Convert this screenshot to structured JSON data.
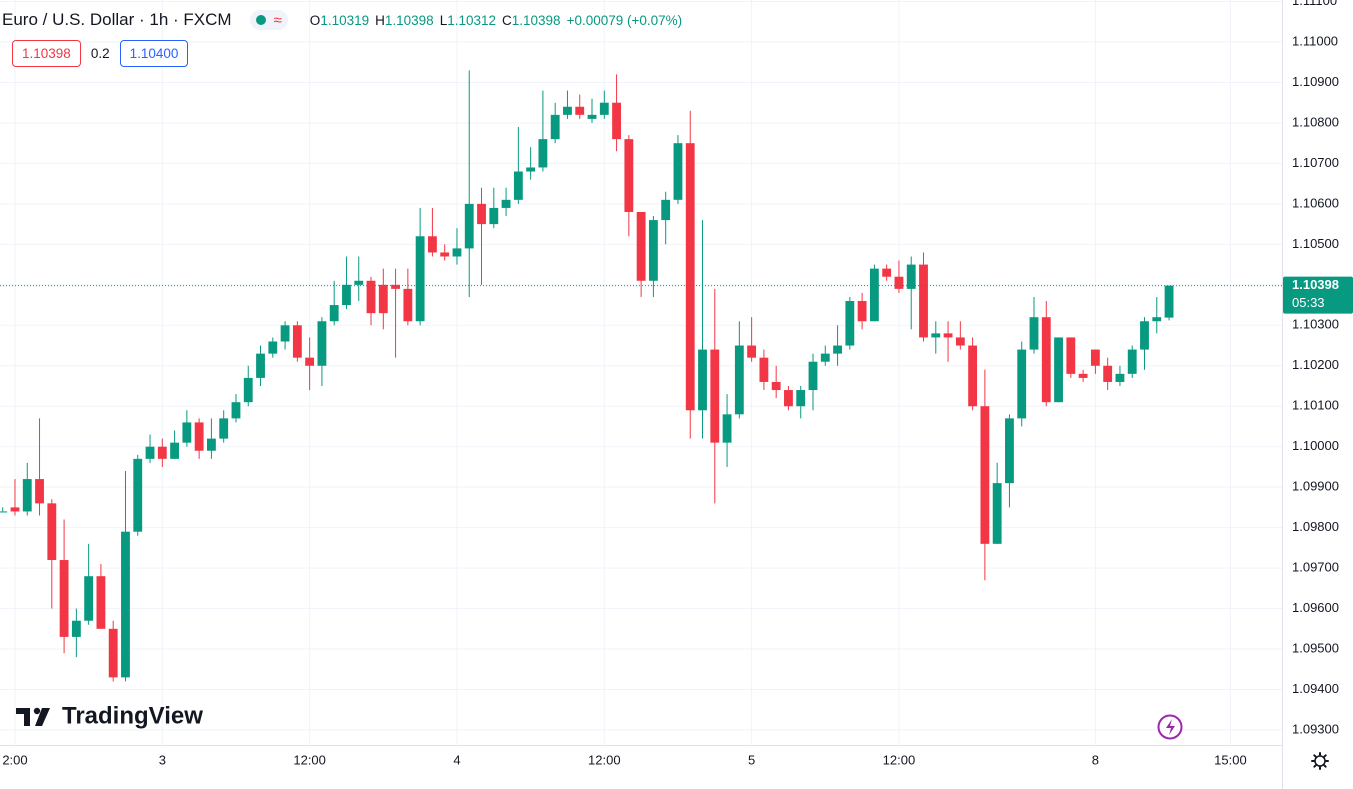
{
  "chart_data": {
    "type": "candlestick",
    "title": "Euro / U.S. Dollar · 1h · FXCM",
    "ohlc_header": [
      {
        "key": "O",
        "value": 1.10319
      },
      {
        "key": "H",
        "value": 1.10398
      },
      {
        "key": "L",
        "value": 1.10312
      },
      {
        "key": "C",
        "value": 1.10398
      }
    ],
    "change": "+0.00079 (+0.07%)",
    "bid": 1.10398,
    "spread": 0.2,
    "ask": {
      "value": 1.104,
      "label": "1.10400"
    },
    "last_price": 1.10398,
    "countdown": "05:33",
    "watermark": "TradingView",
    "up_color": "#089981",
    "down_color": "#f23645",
    "grid": true,
    "x": [
      0,
      1,
      2,
      3,
      4,
      5,
      6,
      7,
      8,
      9,
      10,
      11,
      12,
      13,
      14,
      15,
      16,
      17,
      18,
      19,
      20,
      21,
      22,
      23,
      24,
      25,
      26,
      27,
      28,
      29,
      30,
      31,
      32,
      33,
      34,
      35,
      36,
      37,
      38,
      39,
      40,
      41,
      42,
      43,
      44,
      45,
      46,
      47,
      48,
      49,
      50,
      51,
      52,
      53,
      54,
      55,
      56,
      57,
      58,
      59,
      60,
      61,
      62,
      63,
      64,
      65,
      66,
      67,
      68,
      69,
      70,
      71,
      72,
      73,
      74,
      75,
      76,
      77,
      78,
      79,
      80,
      81,
      82,
      83,
      84,
      85,
      86,
      87,
      88,
      89,
      90,
      91,
      92,
      93,
      94,
      95
    ],
    "open": [
      1.0984,
      1.0985,
      1.0984,
      1.0992,
      1.0986,
      1.0972,
      1.0953,
      1.0957,
      1.0968,
      1.0955,
      1.0943,
      1.0979,
      1.0997,
      1.1,
      1.0997,
      1.1001,
      1.1006,
      1.0999,
      1.1002,
      1.1007,
      1.1011,
      1.1017,
      1.1023,
      1.1026,
      1.103,
      1.1022,
      1.102,
      1.1031,
      1.1035,
      1.104,
      1.1041,
      1.104,
      1.104,
      1.1039,
      1.1031,
      1.1052,
      1.1048,
      1.1047,
      1.1049,
      1.106,
      1.1055,
      1.1059,
      1.1061,
      1.1068,
      1.1069,
      1.1076,
      1.1082,
      1.1084,
      1.1081,
      1.1082,
      1.1085,
      1.1076,
      1.1058,
      1.1041,
      1.1056,
      1.1061,
      1.1075,
      1.1009,
      1.1024,
      1.1001,
      1.1008,
      1.1025,
      1.1022,
      1.1016,
      1.1014,
      1.101,
      1.1014,
      1.1021,
      1.1023,
      1.1025,
      1.1036,
      1.1031,
      1.1044,
      1.1042,
      1.1039,
      1.1045,
      1.1027,
      1.1028,
      1.1027,
      1.1025,
      1.101,
      1.0976,
      1.0991,
      1.1007,
      1.1024,
      1.1032,
      1.1011,
      1.1027,
      1.1018,
      1.1024,
      1.102,
      1.1016,
      1.1018,
      1.1024,
      1.1031,
      1.10319
    ],
    "high": [
      1.0985,
      1.0992,
      1.0996,
      1.1007,
      1.0987,
      1.0982,
      1.096,
      1.0976,
      1.0971,
      1.0957,
      1.0994,
      1.0998,
      1.1003,
      1.1002,
      1.1004,
      1.1009,
      1.1007,
      1.1007,
      1.1009,
      1.1013,
      1.102,
      1.1025,
      1.1027,
      1.1031,
      1.1031,
      1.1027,
      1.1032,
      1.1041,
      1.1047,
      1.1047,
      1.1042,
      1.1044,
      1.1044,
      1.1044,
      1.1059,
      1.1059,
      1.105,
      1.1054,
      1.1093,
      1.1064,
      1.1064,
      1.1064,
      1.1079,
      1.1074,
      1.1088,
      1.1085,
      1.1088,
      1.1087,
      1.1086,
      1.1088,
      1.1092,
      1.1077,
      1.1058,
      1.1057,
      1.1063,
      1.1077,
      1.1083,
      1.1056,
      1.1039,
      1.1013,
      1.1031,
      1.1032,
      1.1024,
      1.102,
      1.1015,
      1.1015,
      1.1023,
      1.1025,
      1.103,
      1.1037,
      1.1038,
      1.1045,
      1.1045,
      1.1046,
      1.1047,
      1.1048,
      1.1031,
      1.1031,
      1.1031,
      1.1027,
      1.1019,
      1.0996,
      1.1008,
      1.1026,
      1.1037,
      1.1036,
      1.1027,
      1.1027,
      1.1019,
      1.1024,
      1.1022,
      1.102,
      1.1025,
      1.1032,
      1.1037,
      1.10398
    ],
    "low": [
      1.0984,
      1.0983,
      1.0983,
      1.0983,
      1.096,
      1.0949,
      1.0948,
      1.0956,
      1.0955,
      1.0942,
      1.0942,
      1.0978,
      1.0996,
      1.0995,
      1.0997,
      1.1,
      1.0997,
      1.0997,
      1.1001,
      1.1006,
      1.101,
      1.1015,
      1.1022,
      1.1024,
      1.1021,
      1.1014,
      1.1015,
      1.103,
      1.1034,
      1.1036,
      1.103,
      1.1029,
      1.1022,
      1.103,
      1.103,
      1.1047,
      1.1046,
      1.1045,
      1.1037,
      1.104,
      1.1054,
      1.1057,
      1.106,
      1.1066,
      1.1068,
      1.1075,
      1.1081,
      1.1081,
      1.108,
      1.1081,
      1.1073,
      1.1052,
      1.1037,
      1.1037,
      1.105,
      1.106,
      1.1002,
      1.1002,
      1.0986,
      1.0995,
      1.1007,
      1.1021,
      1.1014,
      1.1012,
      1.1009,
      1.1007,
      1.1009,
      1.102,
      1.102,
      1.1024,
      1.1029,
      1.1031,
      1.1041,
      1.1038,
      1.1029,
      1.1026,
      1.1023,
      1.1021,
      1.1024,
      1.1009,
      1.0967,
      1.0976,
      1.0985,
      1.1005,
      1.1023,
      1.101,
      1.1011,
      1.1017,
      1.1016,
      1.1018,
      1.1014,
      1.1015,
      1.1017,
      1.1019,
      1.1028,
      1.10312
    ],
    "close": [
      1.0984,
      1.0984,
      1.0992,
      1.0986,
      1.0972,
      1.0953,
      1.0957,
      1.0968,
      1.0955,
      1.0943,
      1.0979,
      1.0997,
      1.1,
      1.0997,
      1.1001,
      1.1006,
      1.0999,
      1.1002,
      1.1007,
      1.1011,
      1.1017,
      1.1023,
      1.1026,
      1.103,
      1.1022,
      1.102,
      1.1031,
      1.1035,
      1.104,
      1.1041,
      1.1033,
      1.1033,
      1.1039,
      1.1031,
      1.1052,
      1.1048,
      1.1047,
      1.1049,
      1.106,
      1.1055,
      1.1059,
      1.1061,
      1.1068,
      1.1069,
      1.1076,
      1.1082,
      1.1084,
      1.1082,
      1.1082,
      1.1085,
      1.1076,
      1.1058,
      1.1041,
      1.1056,
      1.1061,
      1.1075,
      1.1009,
      1.1024,
      1.1001,
      1.1008,
      1.1025,
      1.1022,
      1.1016,
      1.1014,
      1.101,
      1.1014,
      1.1021,
      1.1023,
      1.1025,
      1.1036,
      1.1031,
      1.1044,
      1.1042,
      1.1039,
      1.1045,
      1.1027,
      1.1028,
      1.1027,
      1.1025,
      1.101,
      1.0976,
      1.0991,
      1.1007,
      1.1024,
      1.1032,
      1.1011,
      1.1027,
      1.1018,
      1.1017,
      1.102,
      1.1016,
      1.1018,
      1.1024,
      1.1031,
      1.1032,
      1.10398
    ],
    "xlim": [
      -0.22,
      104.2
    ],
    "xticks": [
      {
        "value": 1,
        "label": "2:00"
      },
      {
        "value": 13,
        "label": "3"
      },
      {
        "value": 25,
        "label": "12:00"
      },
      {
        "value": 37,
        "label": "4"
      },
      {
        "value": 49,
        "label": "12:00"
      },
      {
        "value": 61,
        "label": "5"
      },
      {
        "value": 73,
        "label": "12:00"
      },
      {
        "value": 89,
        "label": "8"
      },
      {
        "value": 100,
        "label": "15:00"
      }
    ],
    "ylim": [
      1.092629,
      1.111038
    ],
    "yticks": [
      {
        "value": 1.093,
        "label": "1.09300"
      },
      {
        "value": 1.094,
        "label": "1.09400"
      },
      {
        "value": 1.095,
        "label": "1.09500"
      },
      {
        "value": 1.096,
        "label": "1.09600"
      },
      {
        "value": 1.097,
        "label": "1.09700"
      },
      {
        "value": 1.098,
        "label": "1.09800"
      },
      {
        "value": 1.099,
        "label": "1.09900"
      },
      {
        "value": 1.1,
        "label": "1.10000"
      },
      {
        "value": 1.101,
        "label": "1.10100"
      },
      {
        "value": 1.102,
        "label": "1.10200"
      },
      {
        "value": 1.103,
        "label": "1.10300"
      },
      {
        "value": 1.104,
        "label": "1.10400"
      },
      {
        "value": 1.105,
        "label": "1.10500"
      },
      {
        "value": 1.106,
        "label": "1.10600"
      },
      {
        "value": 1.107,
        "label": "1.10700"
      },
      {
        "value": 1.108,
        "label": "1.10800"
      },
      {
        "value": 1.109,
        "label": "1.10900"
      },
      {
        "value": 1.11,
        "label": "1.11000"
      },
      {
        "value": 1.111,
        "label": "1.11100"
      }
    ]
  }
}
